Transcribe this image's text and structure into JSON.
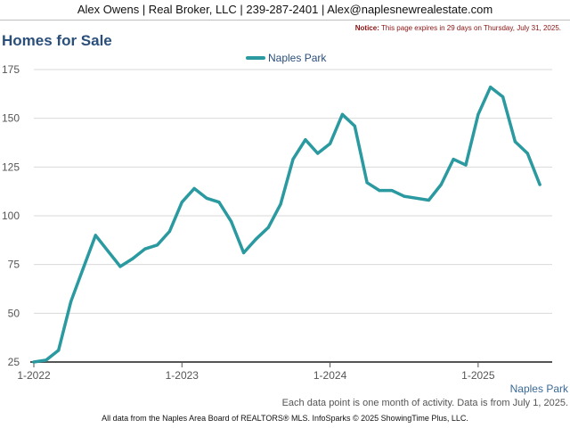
{
  "header": {
    "contact": "Alex Owens | Real Broker, LLC | 239-287-2401 | Alex@naplesnewrealestate.com"
  },
  "notice": {
    "label": "Notice:",
    "text": "This page expires in 29 days on Thursday, July 31, 2025."
  },
  "title": "Homes for Sale",
  "series_label": "Naples Park",
  "note": "Each data point is one month of activity. Data is from July 1, 2025.",
  "footer": "All data from the Naples Area Board of REALTORS® MLS. InfoSparks © 2025 ShowingTime Plus, LLC.",
  "colors": {
    "series": "#2a9aa0",
    "grid": "#d9d9d9",
    "axis": "#555555"
  },
  "chart_data": {
    "type": "line",
    "title": "Homes for Sale",
    "ylim": [
      25,
      175
    ],
    "yticks": [
      25,
      50,
      75,
      100,
      125,
      150,
      175
    ],
    "x_tick_labels": [
      "1-2022",
      "1-2023",
      "1-2024",
      "1-2025"
    ],
    "x_tick_index": [
      0,
      12,
      24,
      36
    ],
    "legend": "top-center",
    "grid": true,
    "x": [
      "2022-01",
      "2022-02",
      "2022-03",
      "2022-04",
      "2022-05",
      "2022-06",
      "2022-07",
      "2022-08",
      "2022-09",
      "2022-10",
      "2022-11",
      "2022-12",
      "2023-01",
      "2023-02",
      "2023-03",
      "2023-04",
      "2023-05",
      "2023-06",
      "2023-07",
      "2023-08",
      "2023-09",
      "2023-10",
      "2023-11",
      "2023-12",
      "2024-01",
      "2024-02",
      "2024-03",
      "2024-04",
      "2024-05",
      "2024-06",
      "2024-07",
      "2024-08",
      "2024-09",
      "2024-10",
      "2024-11",
      "2024-12",
      "2025-01",
      "2025-02",
      "2025-03",
      "2025-04",
      "2025-05",
      "2025-06"
    ],
    "series": [
      {
        "name": "Naples Park",
        "values": [
          25,
          26,
          31,
          56,
          73,
          90,
          82,
          74,
          78,
          83,
          85,
          92,
          107,
          114,
          109,
          107,
          97,
          81,
          88,
          94,
          106,
          129,
          139,
          132,
          137,
          152,
          146,
          117,
          113,
          113,
          110,
          109,
          108,
          116,
          129,
          126,
          152,
          166,
          161,
          138,
          132,
          116
        ]
      }
    ]
  }
}
